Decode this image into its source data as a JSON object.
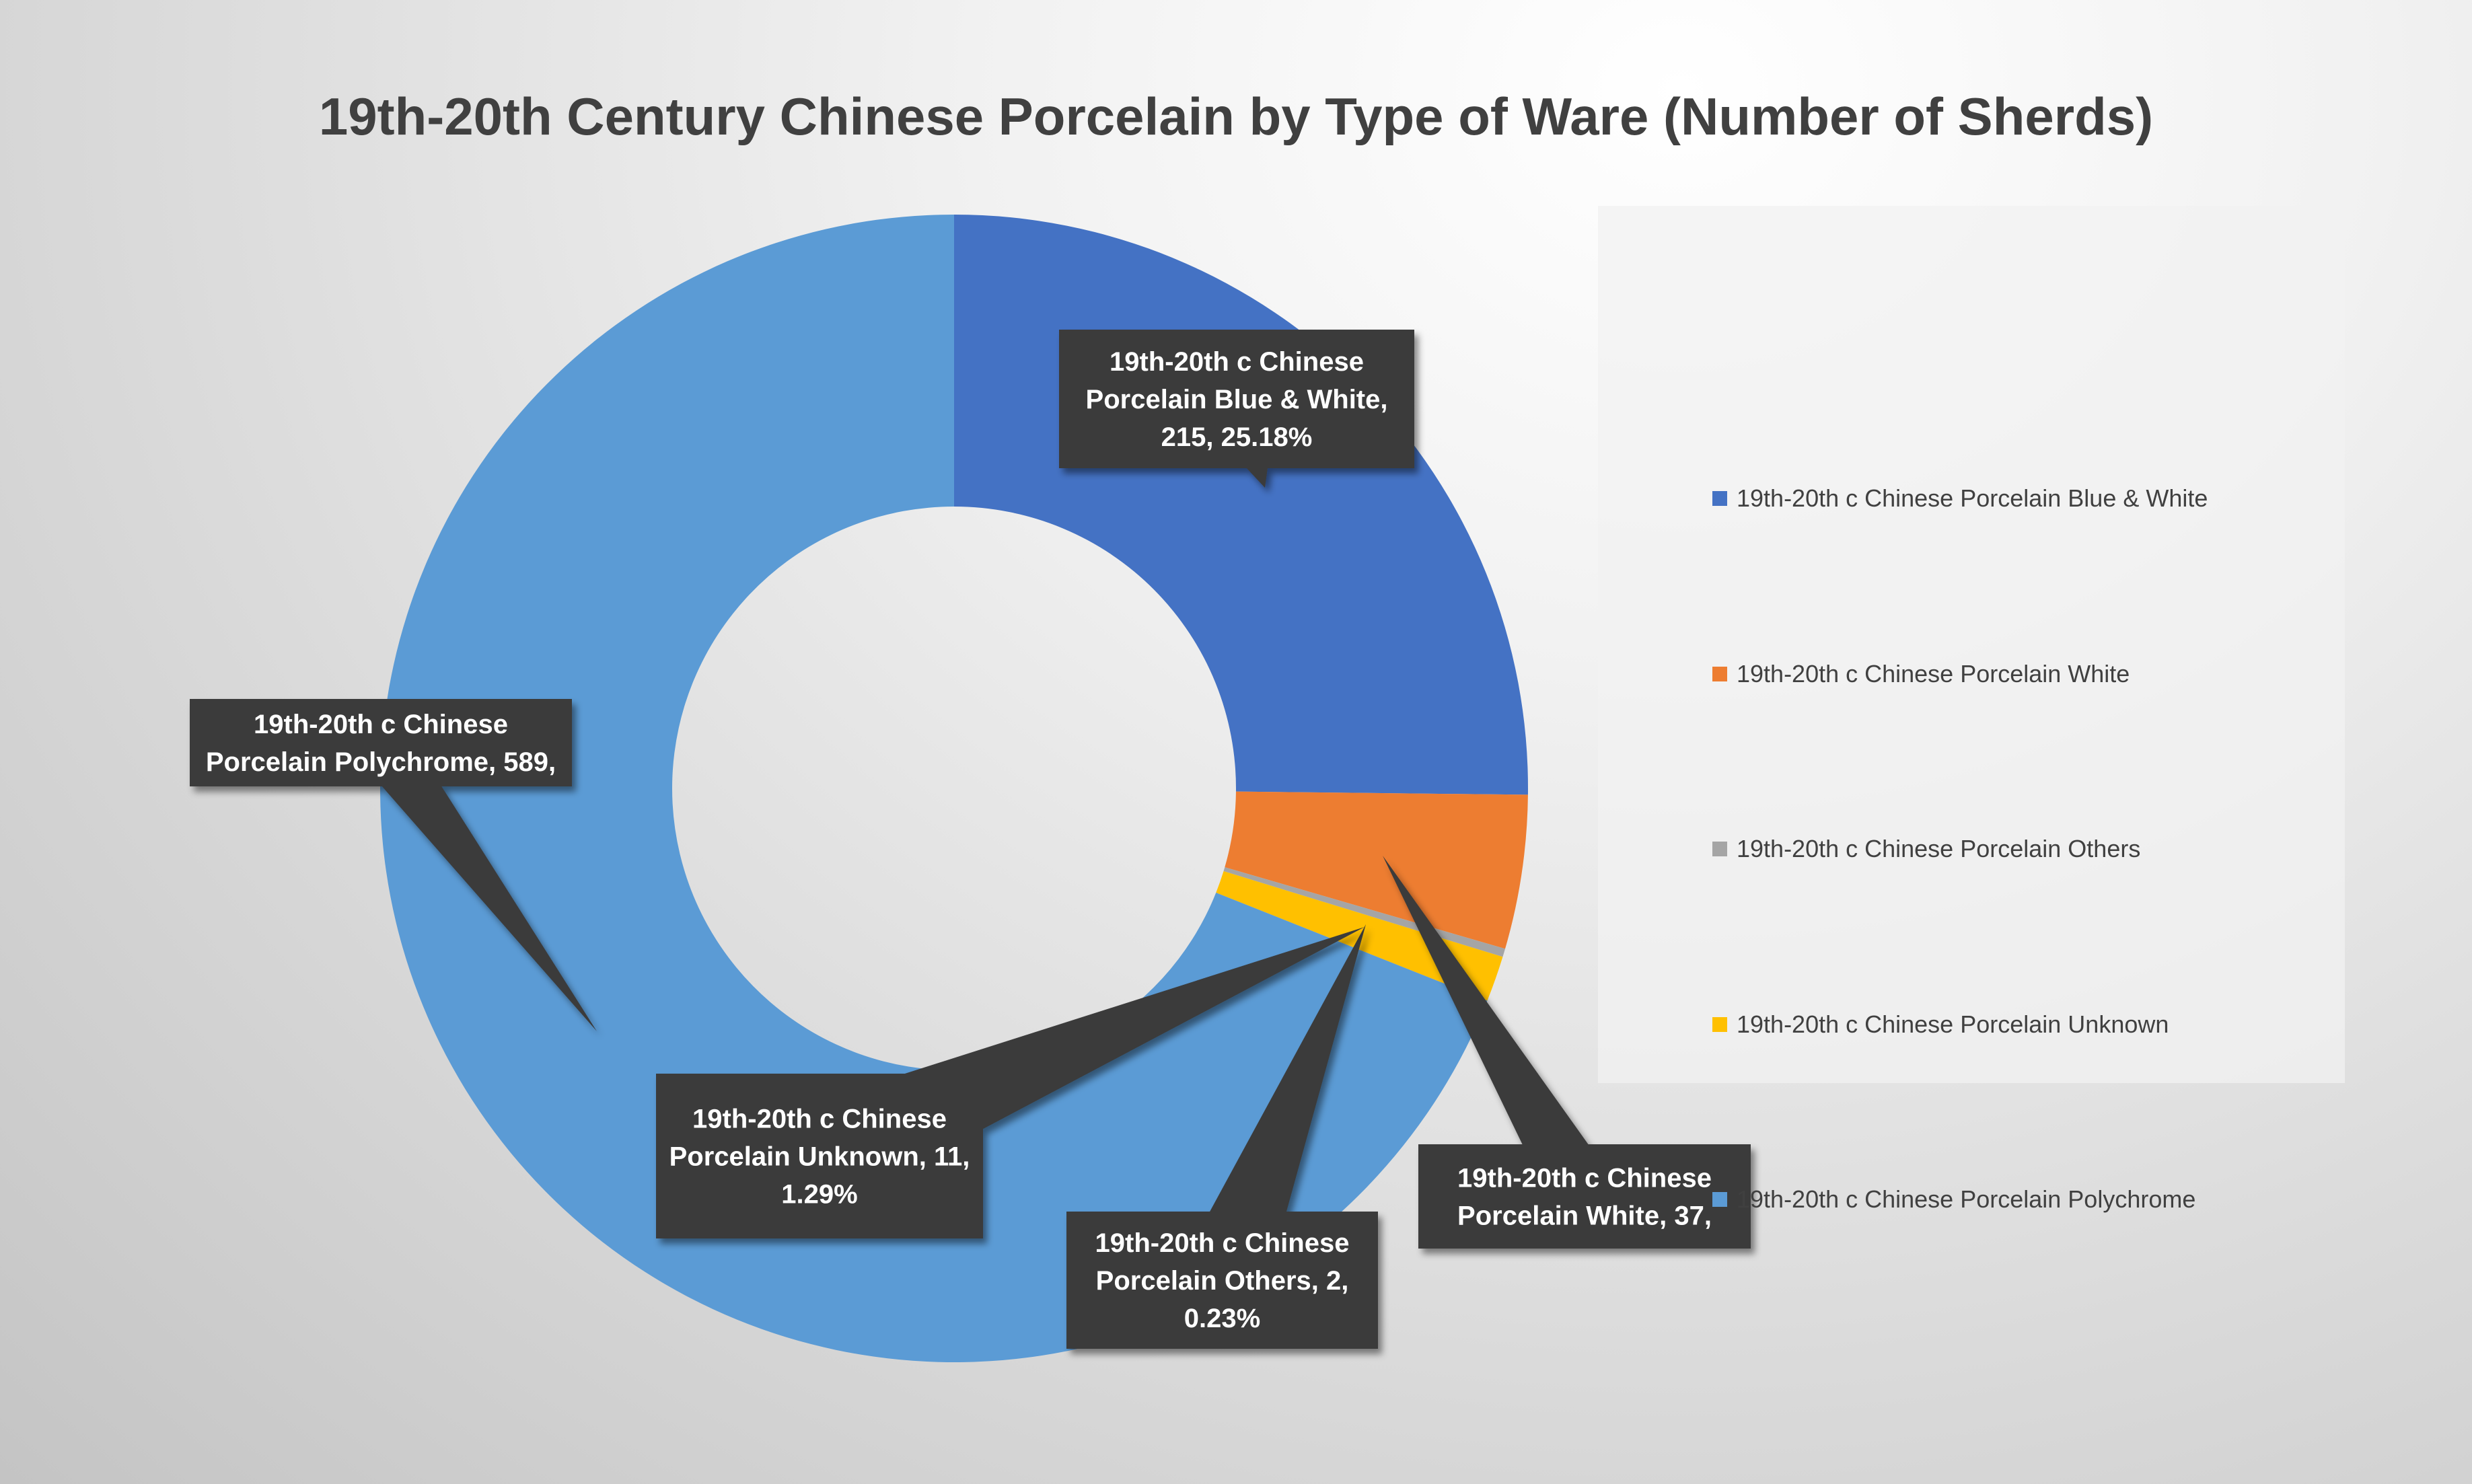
{
  "chart_data": {
    "type": "pie",
    "donut": true,
    "title": "19th-20th Century Chinese Porcelain by Type of Ware (Number of Sherds)",
    "legend_position": "right",
    "slices": [
      {
        "name": "19th-20th c Chinese Porcelain Blue & White",
        "value": 215,
        "color": "#4472C4",
        "label_lines": [
          "19th-20th c Chinese",
          "Porcelain Blue & White,",
          "215, 25.18%"
        ]
      },
      {
        "name": "19th-20th c Chinese Porcelain White",
        "value": 37,
        "color": "#ED7D31",
        "label_lines": [
          "19th-20th c Chinese",
          "Porcelain White, 37,"
        ]
      },
      {
        "name": "19th-20th c Chinese Porcelain Others",
        "value": 2,
        "color": "#A5A5A5",
        "label_lines": [
          "19th-20th c Chinese",
          "Porcelain Others, 2,",
          "0.23%"
        ]
      },
      {
        "name": "19th-20th c Chinese Porcelain Unknown",
        "value": 11,
        "color": "#FFC000",
        "label_lines": [
          "19th-20th c Chinese",
          "Porcelain Unknown, 11,",
          "1.29%"
        ]
      },
      {
        "name": "19th-20th c Chinese Porcelain Polychrome",
        "value": 589,
        "color": "#5B9BD5",
        "label_lines": [
          "19th-20th c Chinese",
          "Porcelain Polychrome, 589,"
        ]
      }
    ]
  },
  "label_style": {
    "box_color": "#3a3a3a",
    "text_color": "#ffffff"
  }
}
